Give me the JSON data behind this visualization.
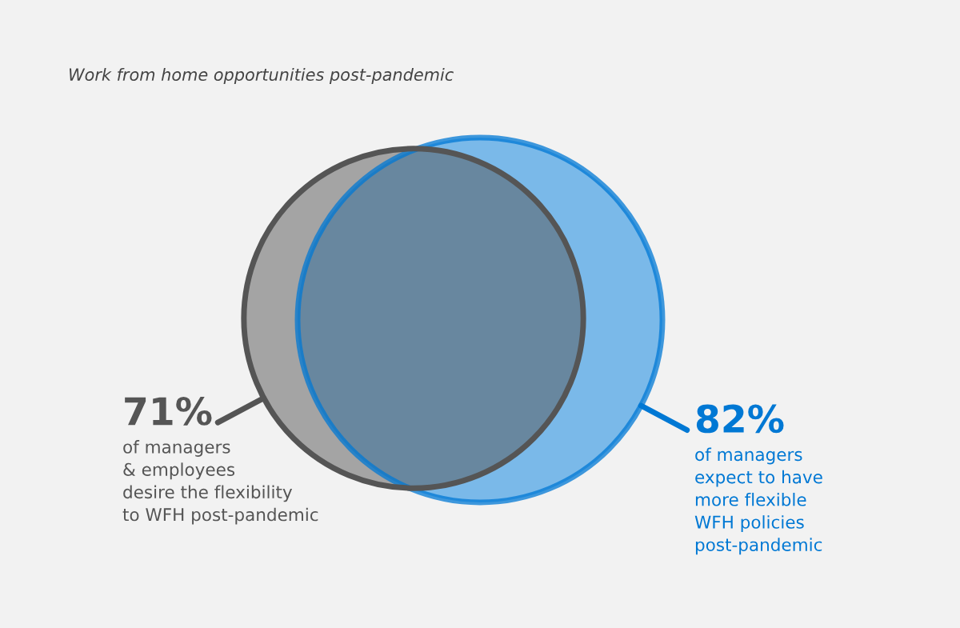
{
  "chart_data": {
    "type": "other",
    "title": "Work from home opportunities post-pandemic",
    "categories": [
      "of managers\n& employees\ndesire the flexibility\nto WFH post-pandemic",
      "of managers\nexpect to have\nmore flexible\nWFH policies\npost-pandemic"
    ],
    "values": [
      71,
      82
    ],
    "value_labels": [
      "71%",
      "82%"
    ],
    "colors": [
      "#555555",
      "#0078d4"
    ]
  }
}
